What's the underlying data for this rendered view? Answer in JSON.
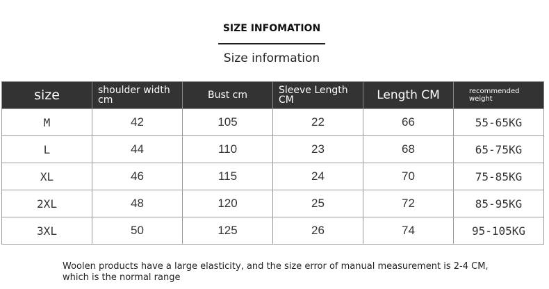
{
  "title": "SIZE INFOMATION",
  "subtitle": "Size information",
  "table": {
    "headers": [
      "size",
      "shoulder width cm",
      "Bust cm",
      "Sleeve Length CM",
      "Length CM",
      "recommended weight"
    ],
    "rows": [
      [
        "M",
        "42",
        "105",
        "22",
        "66",
        "55-65KG"
      ],
      [
        "L",
        "44",
        "110",
        "23",
        "68",
        "65-75KG"
      ],
      [
        "XL",
        "46",
        "115",
        "24",
        "70",
        "75-85KG"
      ],
      [
        "2XL",
        "48",
        "120",
        "25",
        "72",
        "85-95KG"
      ],
      [
        "3XL",
        "50",
        "125",
        "26",
        "74",
        "95-105KG"
      ]
    ]
  },
  "note": "Woolen products have a large elasticity, and the size error of manual measurement is 2-4 CM, which is the normal range",
  "colors": {
    "header_bg": "#333333",
    "header_text": "#ffffff",
    "grid": "#999999"
  }
}
